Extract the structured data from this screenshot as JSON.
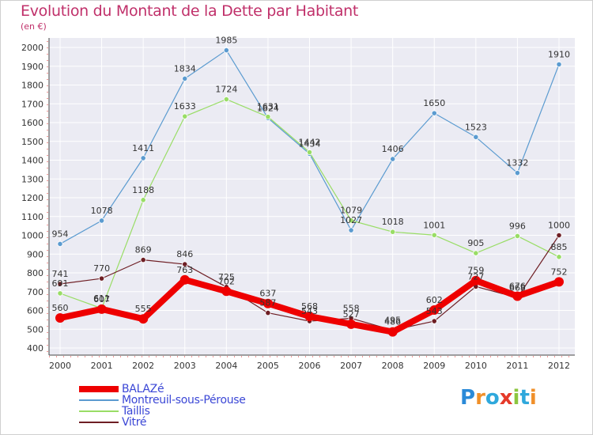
{
  "header": {
    "title": "Evolution du Montant de la Dette par Habitant",
    "unit": "(en €)"
  },
  "logo": {
    "text": "Proxiti",
    "letters": [
      "P",
      "r",
      "o",
      "x",
      "i",
      "t",
      "i"
    ],
    "colors": [
      "#2a8ad8",
      "#f0902a",
      "#2fa8dc",
      "#e53a2a",
      "#8cc63f",
      "#2fa8dc",
      "#f0902a"
    ]
  },
  "chart_data": {
    "type": "line",
    "title": "Evolution du Montant de la Dette par Habitant",
    "ylabel": "(en €)",
    "xlabel": "",
    "x": [
      "2000",
      "2001",
      "2002",
      "2003",
      "2004",
      "2005",
      "2006",
      "2007",
      "2008",
      "2009",
      "2010",
      "2011",
      "2012"
    ],
    "ylim": [
      400,
      2000
    ],
    "yticks": [
      400,
      500,
      600,
      700,
      800,
      900,
      1000,
      1100,
      1200,
      1300,
      1400,
      1500,
      1600,
      1700,
      1800,
      1900,
      2000
    ],
    "grid": true,
    "legend_position": "bottom-left",
    "series": [
      {
        "name": "Montreuil-sous-Pérouse",
        "color": "#5b9bd0",
        "width": 1.2,
        "values": [
          954,
          1078,
          1411,
          1834,
          1985,
          1624,
          1434,
          1027,
          1406,
          1650,
          1523,
          1332,
          1910
        ]
      },
      {
        "name": "Taillis",
        "color": "#99dd66",
        "width": 1.2,
        "values": [
          691,
          611,
          1188,
          1633,
          1724,
          1631,
          1442,
          1079,
          1018,
          1001,
          905,
          996,
          885
        ]
      },
      {
        "name": "Vitré",
        "color": "#6e1e24",
        "width": 1.2,
        "values": [
          741,
          770,
          869,
          846,
          725,
          587,
          543,
          558,
          495,
          543,
          727,
          668,
          1000
        ]
      },
      {
        "name": "BALAZé",
        "color": "#ee0000",
        "width": 8,
        "values": [
          560,
          607,
          555,
          763,
          702,
          637,
          568,
          527,
          486,
          602,
          759,
          676,
          752
        ]
      }
    ]
  }
}
